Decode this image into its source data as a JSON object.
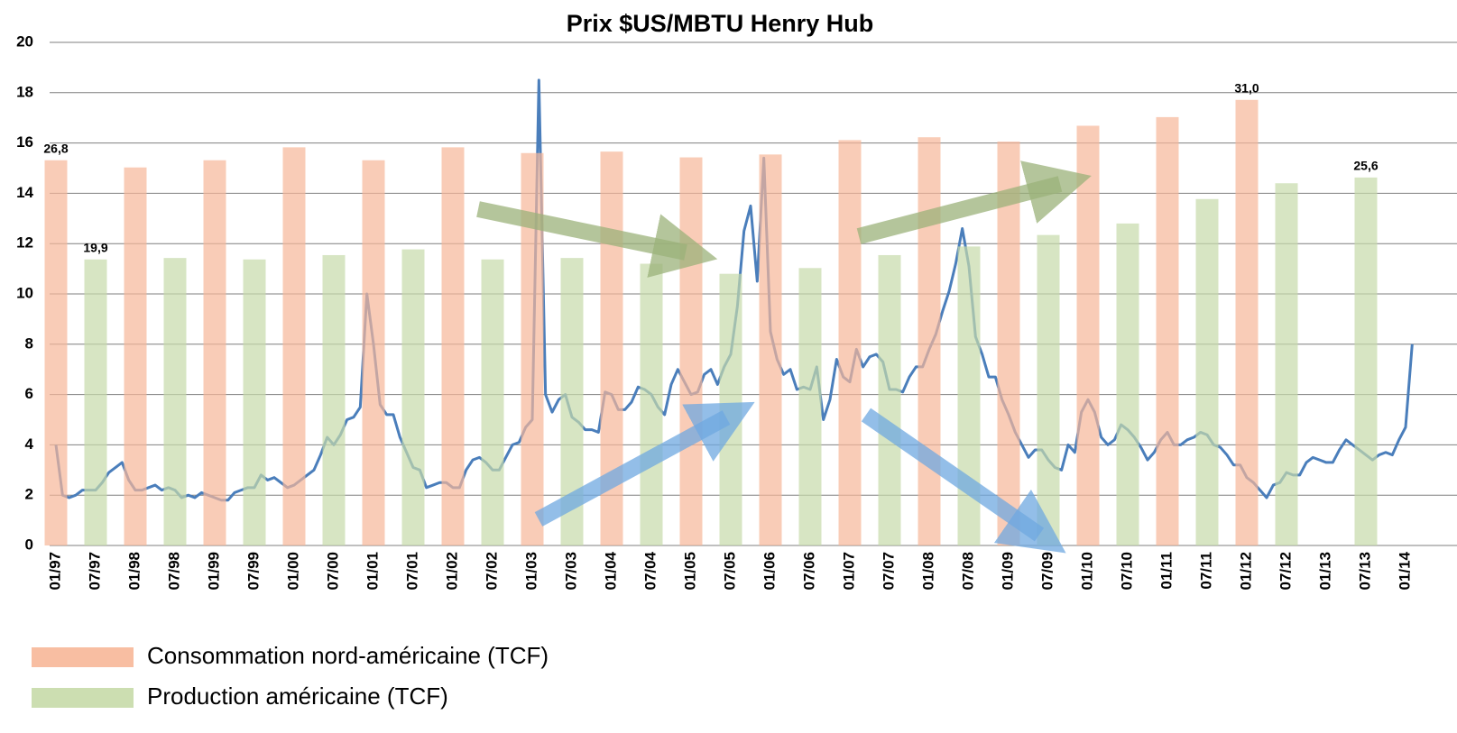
{
  "chart_data": {
    "type": "bar",
    "title": "Prix $US/MBTU Henry Hub",
    "categories": [
      "01/97",
      "07/97",
      "01/98",
      "07/98",
      "01/99",
      "07/99",
      "01/00",
      "07/00",
      "01/01",
      "07/01",
      "01/02",
      "07/02",
      "01/03",
      "07/03",
      "01/04",
      "07/04",
      "01/05",
      "07/05",
      "01/06",
      "07/06",
      "01/07",
      "07/07",
      "01/08",
      "07/08",
      "01/09",
      "07/09",
      "01/10",
      "07/10",
      "01/11",
      "07/11",
      "01/12",
      "07/12",
      "01/13",
      "07/13",
      "01/14"
    ],
    "ylim": [
      0,
      20
    ],
    "yticks": [
      0,
      2,
      4,
      6,
      8,
      10,
      12,
      14,
      16,
      18,
      20
    ],
    "y2lim": [
      0,
      35
    ],
    "grid": true,
    "series": [
      {
        "name": "Consommation nord-américaine (TCF)",
        "type": "bar",
        "axis": "y2",
        "color": "#f7b798",
        "values": [
          26.8,
          null,
          26.3,
          null,
          26.8,
          null,
          27.7,
          null,
          26.8,
          null,
          27.7,
          null,
          27.3,
          null,
          27.4,
          null,
          27.0,
          null,
          27.2,
          null,
          28.2,
          null,
          28.4,
          null,
          28.1,
          null,
          29.2,
          null,
          29.8,
          null,
          31.0,
          null,
          null,
          null,
          null
        ],
        "value_labels": [
          "26,8",
          null,
          null,
          null,
          null,
          null,
          null,
          null,
          null,
          null,
          null,
          null,
          null,
          null,
          null,
          null,
          null,
          null,
          null,
          null,
          null,
          null,
          null,
          null,
          null,
          null,
          null,
          null,
          null,
          null,
          "31,0",
          null,
          null,
          null,
          null
        ]
      },
      {
        "name": "Production américaine (TCF)",
        "type": "bar",
        "axis": "y2",
        "color": "#c6daa9",
        "values": [
          null,
          19.9,
          null,
          20.0,
          null,
          19.9,
          null,
          20.2,
          null,
          20.6,
          null,
          19.9,
          null,
          20.0,
          null,
          19.6,
          null,
          18.9,
          null,
          19.3,
          null,
          20.2,
          null,
          20.8,
          null,
          21.6,
          null,
          22.4,
          null,
          24.1,
          null,
          25.2,
          null,
          25.6,
          null
        ],
        "value_labels": [
          null,
          "19,9",
          null,
          null,
          null,
          null,
          null,
          null,
          null,
          null,
          null,
          null,
          null,
          null,
          null,
          null,
          null,
          null,
          null,
          null,
          null,
          null,
          null,
          null,
          null,
          null,
          null,
          null,
          null,
          null,
          null,
          null,
          null,
          "25,6",
          null
        ]
      },
      {
        "type": "line",
        "color": "#4a7ebb",
        "x": [
          "01/97",
          "02/97",
          "03/97",
          "04/97",
          "05/97",
          "06/97",
          "07/97",
          "08/97",
          "09/97",
          "10/97",
          "11/97",
          "12/97",
          "01/98",
          "02/98",
          "03/98",
          "04/98",
          "05/98",
          "06/98",
          "07/98",
          "08/98",
          "09/98",
          "10/98",
          "11/98",
          "12/98",
          "01/99",
          "02/99",
          "03/99",
          "04/99",
          "05/99",
          "06/99",
          "07/99",
          "08/99",
          "09/99",
          "10/99",
          "11/99",
          "12/99",
          "01/00",
          "02/00",
          "03/00",
          "04/00",
          "05/00",
          "06/00",
          "07/00",
          "08/00",
          "09/00",
          "10/00",
          "11/00",
          "12/00",
          "01/01",
          "02/01",
          "03/01",
          "04/01",
          "05/01",
          "06/01",
          "07/01",
          "08/01",
          "09/01",
          "10/01",
          "11/01",
          "12/01",
          "01/02",
          "02/02",
          "03/02",
          "04/02",
          "05/02",
          "06/02",
          "07/02",
          "08/02",
          "09/02",
          "10/02",
          "11/02",
          "12/02",
          "01/03",
          "02/03",
          "03/03",
          "04/03",
          "05/03",
          "06/03",
          "07/03",
          "08/03",
          "09/03",
          "10/03",
          "11/03",
          "12/03",
          "01/04",
          "02/04",
          "03/04",
          "04/04",
          "05/04",
          "06/04",
          "07/04",
          "08/04",
          "09/04",
          "10/04",
          "11/04",
          "12/04",
          "01/05",
          "02/05",
          "03/05",
          "04/05",
          "05/05",
          "06/05",
          "07/05",
          "08/05",
          "09/05",
          "10/05",
          "11/05",
          "12/05",
          "01/06",
          "02/06",
          "03/06",
          "04/06",
          "05/06",
          "06/06",
          "07/06",
          "08/06",
          "09/06",
          "10/06",
          "11/06",
          "12/06",
          "01/07",
          "02/07",
          "03/07",
          "04/07",
          "05/07",
          "06/07",
          "07/07",
          "08/07",
          "09/07",
          "10/07",
          "11/07",
          "12/07",
          "01/08",
          "02/08",
          "03/08",
          "04/08",
          "05/08",
          "06/08",
          "07/08",
          "08/08",
          "09/08",
          "10/08",
          "11/08",
          "12/08",
          "01/09",
          "02/09",
          "03/09",
          "04/09",
          "05/09",
          "06/09",
          "07/09",
          "08/09",
          "09/09",
          "10/09",
          "11/09",
          "12/09",
          "01/10",
          "02/10",
          "03/10",
          "04/10",
          "05/10",
          "06/10",
          "07/10",
          "08/10",
          "09/10",
          "10/10",
          "11/10",
          "12/10",
          "01/11",
          "02/11",
          "03/11",
          "04/11",
          "05/11",
          "06/11",
          "07/11",
          "08/11",
          "09/11",
          "10/11",
          "11/11",
          "12/11",
          "01/12",
          "02/12",
          "03/12",
          "04/12",
          "05/12",
          "06/12",
          "07/12",
          "08/12",
          "09/12",
          "10/12",
          "11/12",
          "12/12",
          "01/13",
          "02/13",
          "03/13",
          "04/13",
          "05/13",
          "06/13",
          "07/13",
          "08/13",
          "09/13",
          "10/13",
          "11/13",
          "12/13",
          "01/14",
          "02/14"
        ],
        "values": [
          4.0,
          2.0,
          1.9,
          2.0,
          2.2,
          2.2,
          2.2,
          2.5,
          2.9,
          3.1,
          3.3,
          2.6,
          2.2,
          2.2,
          2.3,
          2.4,
          2.2,
          2.3,
          2.2,
          1.9,
          2.0,
          1.9,
          2.1,
          2.0,
          1.9,
          1.8,
          1.8,
          2.1,
          2.2,
          2.3,
          2.3,
          2.8,
          2.6,
          2.7,
          2.5,
          2.3,
          2.4,
          2.6,
          2.8,
          3.0,
          3.6,
          4.3,
          4.0,
          4.4,
          5.0,
          5.1,
          5.5,
          10.0,
          8.0,
          5.6,
          5.2,
          5.2,
          4.3,
          3.7,
          3.1,
          3.0,
          2.3,
          2.4,
          2.5,
          2.5,
          2.3,
          2.3,
          3.0,
          3.4,
          3.5,
          3.3,
          3.0,
          3.0,
          3.5,
          4.0,
          4.1,
          4.7,
          5.0,
          18.5,
          6.0,
          5.3,
          5.8,
          6.0,
          5.1,
          4.9,
          4.6,
          4.6,
          4.5,
          6.1,
          6.0,
          5.4,
          5.4,
          5.7,
          6.3,
          6.2,
          6.0,
          5.5,
          5.2,
          6.4,
          7.0,
          6.5,
          6.0,
          6.1,
          6.8,
          7.0,
          6.4,
          7.1,
          7.6,
          9.5,
          12.5,
          13.5,
          10.5,
          15.4,
          8.5,
          7.4,
          6.8,
          7.0,
          6.2,
          6.3,
          6.2,
          7.1,
          5.0,
          5.8,
          7.4,
          6.7,
          6.5,
          7.8,
          7.1,
          7.5,
          7.6,
          7.3,
          6.2,
          6.2,
          6.1,
          6.7,
          7.1,
          7.1,
          7.8,
          8.4,
          9.3,
          10.1,
          11.2,
          12.6,
          11.1,
          8.3,
          7.6,
          6.7,
          6.7,
          5.8,
          5.2,
          4.5,
          4.0,
          3.5,
          3.8,
          3.8,
          3.4,
          3.1,
          3.0,
          4.0,
          3.7,
          5.3,
          5.8,
          5.3,
          4.3,
          4.0,
          4.2,
          4.8,
          4.6,
          4.3,
          3.9,
          3.4,
          3.7,
          4.2,
          4.5,
          4.0,
          4.0,
          4.2,
          4.3,
          4.5,
          4.4,
          4.0,
          3.9,
          3.6,
          3.2,
          3.2,
          2.7,
          2.5,
          2.2,
          1.9,
          2.4,
          2.5,
          2.9,
          2.8,
          2.8,
          3.3,
          3.5,
          3.4,
          3.3,
          3.3,
          3.8,
          4.2,
          4.0,
          3.8,
          3.6,
          3.4,
          3.6,
          3.7,
          3.6,
          4.2,
          4.7,
          8.0
        ]
      }
    ]
  }
}
